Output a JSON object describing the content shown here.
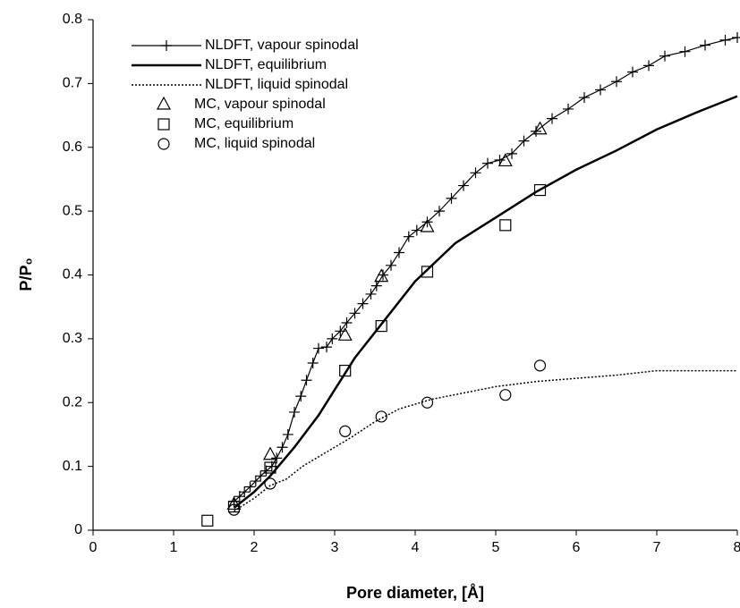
{
  "chart_data": {
    "type": "line",
    "x_label": "Pore diameter, [Å]",
    "y_label": "P/P₀",
    "xlim": [
      0,
      8
    ],
    "ylim": [
      0,
      0.8
    ],
    "xticks": [
      0,
      1,
      2,
      3,
      4,
      5,
      6,
      7,
      8
    ],
    "yticks": [
      0,
      0.1,
      0.2,
      0.3,
      0.4,
      0.5,
      0.6,
      0.7,
      0.8
    ],
    "grid": false,
    "legend": "upper-left",
    "series": [
      {
        "name": "NLDFT, vapour spinodal",
        "color": "#000000",
        "line": "solid",
        "marker": "plus",
        "x": [
          1.75,
          1.82,
          1.88,
          1.95,
          2.02,
          2.08,
          2.15,
          2.22,
          2.28,
          2.35,
          2.42,
          2.5,
          2.58,
          2.65,
          2.73,
          2.8,
          2.9,
          2.97,
          3.07,
          3.15,
          3.25,
          3.35,
          3.45,
          3.52,
          3.6,
          3.7,
          3.8,
          3.92,
          4.02,
          4.15,
          4.3,
          4.45,
          4.6,
          4.75,
          4.9,
          5.05,
          5.2,
          5.35,
          5.5,
          5.7,
          5.9,
          6.1,
          6.3,
          6.5,
          6.7,
          6.9,
          7.1,
          7.35,
          7.6,
          7.85,
          8.0
        ],
        "values": [
          0.045,
          0.053,
          0.06,
          0.068,
          0.077,
          0.085,
          0.093,
          0.1,
          0.113,
          0.13,
          0.15,
          0.185,
          0.21,
          0.235,
          0.262,
          0.285,
          0.287,
          0.3,
          0.312,
          0.325,
          0.34,
          0.355,
          0.37,
          0.383,
          0.4,
          0.415,
          0.435,
          0.46,
          0.47,
          0.483,
          0.5,
          0.52,
          0.54,
          0.56,
          0.575,
          0.58,
          0.59,
          0.61,
          0.625,
          0.645,
          0.66,
          0.678,
          0.69,
          0.703,
          0.718,
          0.728,
          0.743,
          0.75,
          0.76,
          0.768,
          0.772
        ]
      },
      {
        "name": "NLDFT, equilibrium",
        "color": "#000000",
        "line": "thick",
        "marker": null,
        "x": [
          1.75,
          2.0,
          2.2,
          2.5,
          2.8,
          3.0,
          3.25,
          3.5,
          3.75,
          4.0,
          4.5,
          5.0,
          5.5,
          6.0,
          6.5,
          7.0,
          7.5,
          8.0
        ],
        "values": [
          0.035,
          0.06,
          0.085,
          0.13,
          0.18,
          0.22,
          0.27,
          0.31,
          0.35,
          0.39,
          0.45,
          0.49,
          0.53,
          0.565,
          0.595,
          0.628,
          0.655,
          0.68
        ]
      },
      {
        "name": "NLDFT, liquid spinodal",
        "color": "#000000",
        "line": "dotted",
        "marker": null,
        "x": [
          1.75,
          2.0,
          2.2,
          2.4,
          2.6,
          2.8,
          3.0,
          3.2,
          3.5,
          3.8,
          4.2,
          4.6,
          5.0,
          5.5,
          6.0,
          6.5,
          7.0,
          8.0
        ],
        "values": [
          0.03,
          0.05,
          0.07,
          0.08,
          0.1,
          0.115,
          0.13,
          0.145,
          0.17,
          0.19,
          0.205,
          0.215,
          0.225,
          0.233,
          0.238,
          0.243,
          0.25,
          0.25
        ]
      },
      {
        "name": "MC, vapour spinodal",
        "color": "#000000",
        "line": null,
        "marker": "triangle",
        "x": [
          1.75,
          2.2,
          3.13,
          3.58,
          4.15,
          5.12,
          5.55
        ],
        "values": [
          0.04,
          0.118,
          0.305,
          0.397,
          0.475,
          0.578,
          0.628
        ]
      },
      {
        "name": "MC, equilibrium",
        "color": "#000000",
        "line": null,
        "marker": "square",
        "x": [
          1.42,
          1.75,
          2.2,
          3.13,
          3.58,
          4.15,
          5.12,
          5.55
        ],
        "values": [
          0.015,
          0.037,
          0.098,
          0.25,
          0.32,
          0.405,
          0.478,
          0.533
        ]
      },
      {
        "name": "MC, liquid spinodal",
        "color": "#000000",
        "line": null,
        "marker": "circle",
        "x": [
          1.75,
          2.2,
          3.13,
          3.58,
          4.15,
          5.12,
          5.55
        ],
        "values": [
          0.032,
          0.073,
          0.155,
          0.178,
          0.2,
          0.212,
          0.258
        ]
      }
    ]
  }
}
